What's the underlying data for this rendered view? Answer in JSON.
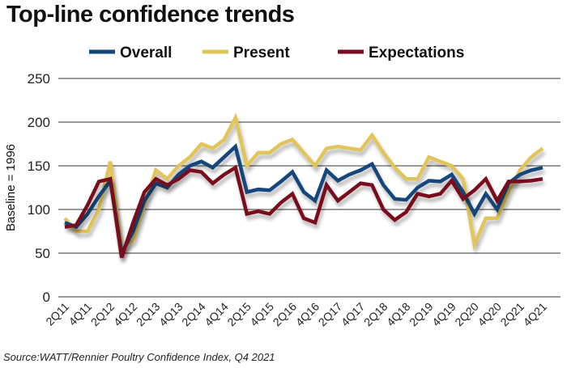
{
  "chart_data": {
    "type": "line",
    "title": "Top-line confidence trends",
    "ylabel": "Baseline = 1996",
    "xlabel": "",
    "ylim": [
      0,
      250
    ],
    "yticks": [
      0,
      50,
      100,
      150,
      200,
      250
    ],
    "grid": true,
    "legend": "top",
    "x": [
      "2Q11",
      "3Q11",
      "4Q11",
      "1Q12",
      "2Q12",
      "3Q12",
      "4Q12",
      "1Q13",
      "2Q13",
      "3Q13",
      "4Q13",
      "1Q14",
      "2Q14",
      "3Q14",
      "4Q14",
      "1Q15",
      "2Q15",
      "3Q15",
      "4Q15",
      "1Q16",
      "2Q16",
      "3Q16",
      "4Q16",
      "1Q17",
      "2Q17",
      "3Q17",
      "4Q17",
      "1Q18",
      "2Q18",
      "3Q18",
      "4Q18",
      "1Q19",
      "2Q19",
      "3Q19",
      "4Q19",
      "1Q20",
      "2Q20",
      "3Q20",
      "4Q20",
      "1Q21",
      "2Q21",
      "3Q21",
      "4Q21"
    ],
    "xticklabels": [
      "2Q11",
      "4Q11",
      "2Q12",
      "4Q12",
      "2Q13",
      "4Q13",
      "2Q14",
      "4Q14",
      "2Q15",
      "4Q15",
      "2Q16",
      "4Q16",
      "2Q17",
      "4Q17",
      "2Q18",
      "4Q18",
      "2Q19",
      "4Q19",
      "2Q20",
      "4Q20",
      "2Q21",
      "4Q21"
    ],
    "series": [
      {
        "name": "Overall",
        "color": "#12467b",
        "values": [
          85,
          80,
          95,
          115,
          133,
          50,
          75,
          110,
          130,
          125,
          140,
          150,
          155,
          148,
          160,
          172,
          120,
          123,
          122,
          132,
          143,
          120,
          110,
          145,
          133,
          140,
          145,
          152,
          128,
          112,
          111,
          125,
          133,
          132,
          140,
          120,
          95,
          118,
          100,
          130,
          140,
          145,
          148
        ]
      },
      {
        "name": "Present",
        "color": "#e2c55a",
        "values": [
          90,
          75,
          75,
          100,
          155,
          55,
          65,
          105,
          145,
          135,
          150,
          160,
          175,
          170,
          180,
          205,
          150,
          165,
          165,
          175,
          180,
          165,
          150,
          170,
          172,
          170,
          168,
          185,
          165,
          148,
          135,
          135,
          160,
          155,
          150,
          135,
          60,
          90,
          90,
          120,
          145,
          160,
          170
        ]
      },
      {
        "name": "Expectations",
        "color": "#7a0a1e",
        "values": [
          80,
          82,
          105,
          132,
          135,
          45,
          85,
          120,
          135,
          128,
          135,
          145,
          143,
          130,
          140,
          148,
          95,
          98,
          95,
          108,
          118,
          90,
          85,
          128,
          110,
          120,
          130,
          128,
          100,
          88,
          97,
          118,
          115,
          118,
          133,
          112,
          122,
          135,
          110,
          132,
          132,
          133,
          135
        ]
      }
    ],
    "source": "Source:WATT/Rennier Poultry Confidence Index, Q4 2021"
  }
}
